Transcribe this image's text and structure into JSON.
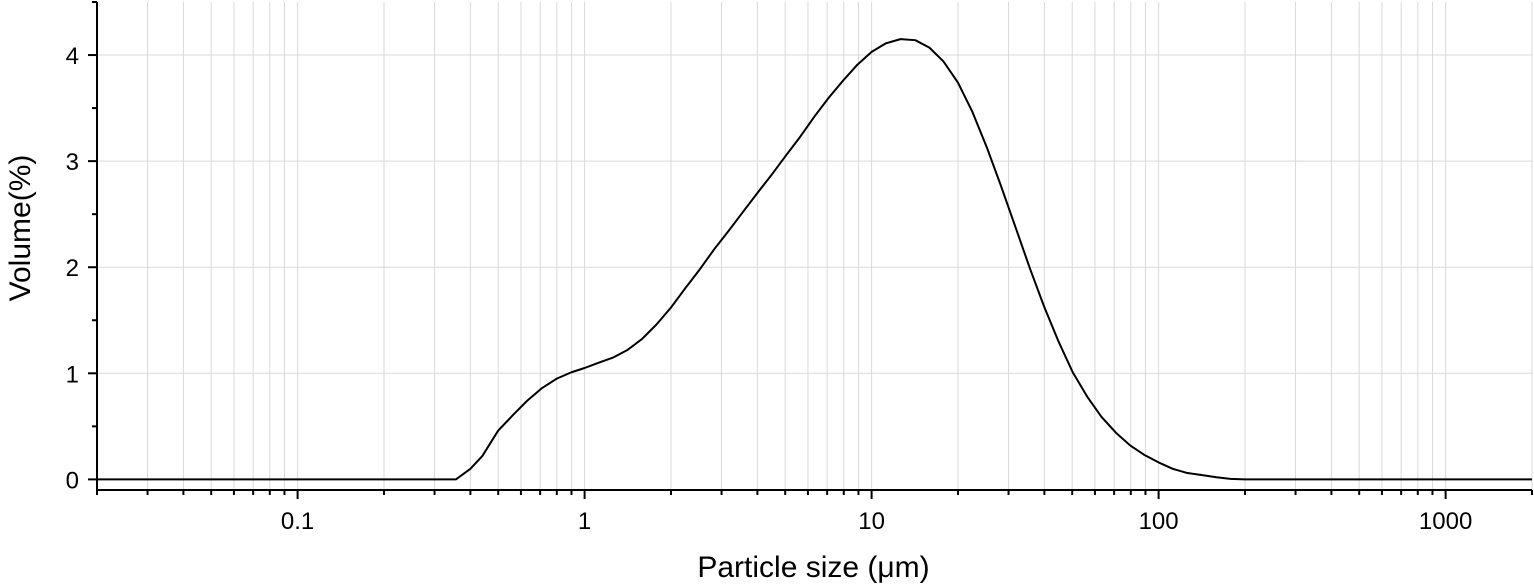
{
  "chart_data": {
    "type": "line",
    "title": "",
    "xlabel": "Particle size (μm)",
    "ylabel": "Volume(%)",
    "x_scale": "log",
    "xlim": [
      0.02,
      2000
    ],
    "ylim": [
      -0.1,
      4.5
    ],
    "x_ticks": [
      0.1,
      1,
      10,
      100,
      1000
    ],
    "x_tick_labels": [
      "0.1",
      "1",
      "10",
      "100",
      "1000"
    ],
    "y_ticks": [
      0,
      1,
      2,
      3,
      4
    ],
    "y_tick_labels": [
      "0",
      "1",
      "2",
      "3",
      "4"
    ],
    "grid": true,
    "legend": "none",
    "colors": {
      "line": "#000000",
      "grid": "#d9d9d9",
      "axis": "#000000"
    },
    "series": [
      {
        "x": [
          0.02,
          0.1,
          0.2,
          0.3,
          0.356,
          0.4,
          0.44,
          0.5,
          0.56,
          0.63,
          0.71,
          0.8,
          0.9,
          1.0,
          1.12,
          1.26,
          1.41,
          1.58,
          1.78,
          2.0,
          2.24,
          2.52,
          2.83,
          3.17,
          3.56,
          4.0,
          4.48,
          5.02,
          5.64,
          6.32,
          7.1,
          7.96,
          8.93,
          10.0,
          11.2,
          12.6,
          14.2,
          15.9,
          17.8,
          20.0,
          22.4,
          25.2,
          28.2,
          31.7,
          35.6,
          39.9,
          44.8,
          50.2,
          56.4,
          63.2,
          71.0,
          79.6,
          89.3,
          100,
          112,
          126,
          142,
          159,
          178,
          200,
          300,
          500,
          1000,
          2000
        ],
        "y": [
          0,
          0,
          0,
          0,
          0,
          0.1,
          0.22,
          0.46,
          0.6,
          0.74,
          0.86,
          0.95,
          1.01,
          1.05,
          1.1,
          1.15,
          1.22,
          1.32,
          1.46,
          1.62,
          1.8,
          1.98,
          2.17,
          2.34,
          2.52,
          2.7,
          2.87,
          3.05,
          3.23,
          3.42,
          3.6,
          3.76,
          3.91,
          4.03,
          4.11,
          4.15,
          4.14,
          4.07,
          3.94,
          3.74,
          3.47,
          3.13,
          2.77,
          2.38,
          1.99,
          1.63,
          1.3,
          1.01,
          0.78,
          0.59,
          0.44,
          0.32,
          0.23,
          0.16,
          0.1,
          0.06,
          0.04,
          0.02,
          0.005,
          0,
          0,
          0,
          0,
          0
        ]
      }
    ]
  }
}
